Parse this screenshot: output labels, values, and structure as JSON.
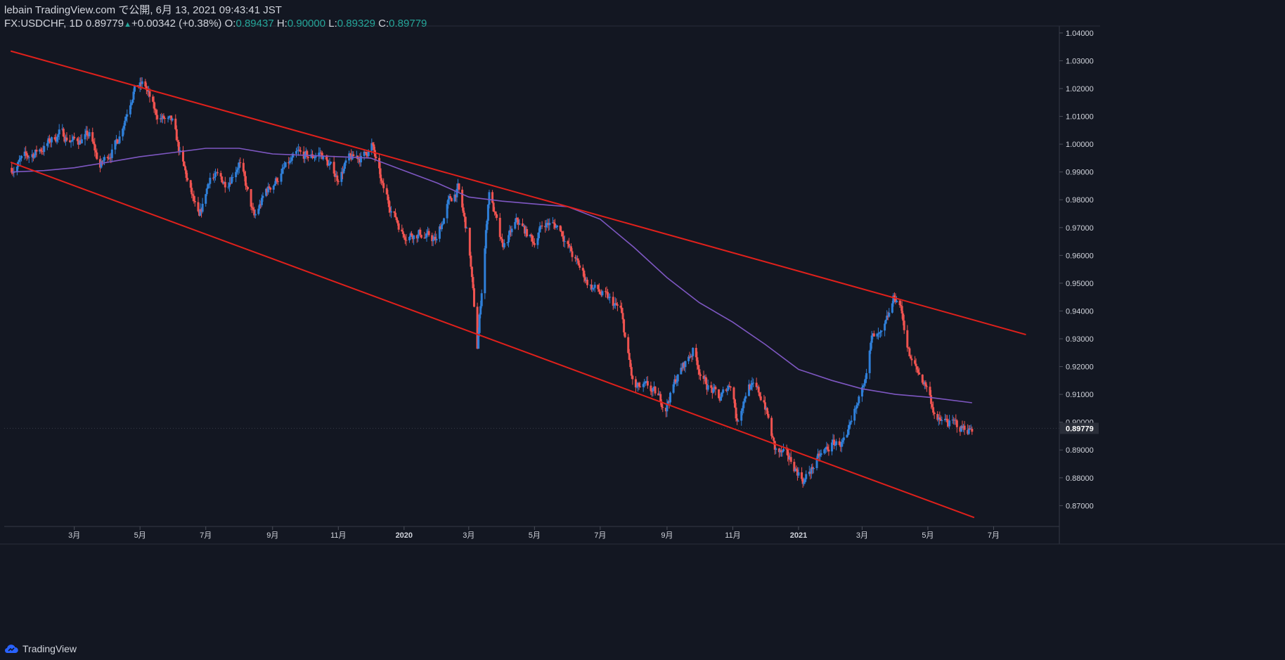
{
  "header": {
    "line1": "lebain TradingView.com で公開, 6月 13, 2021 09:43:41 JST",
    "symbol": "FX:USDCHF, 1D",
    "last": "0.89779",
    "change": "+0.00342 (+0.38%)",
    "o_label": "O:",
    "o_value": "0.89437",
    "h_label": "H:",
    "h_value": "0.90000",
    "l_label": "L:",
    "l_value": "0.89329",
    "c_label": "C:",
    "c_value": "0.89779"
  },
  "footer": {
    "brand": "TradingView"
  },
  "colors": {
    "background": "#131722",
    "up": "#2f7fd8",
    "down": "#ef5350",
    "ma": "#7e57c2",
    "trendline": "#e0201b",
    "axis_text": "#d1d4dc"
  },
  "chart_data": {
    "type": "candlestick",
    "symbol": "FX:USDCHF",
    "interval": "1D",
    "y_ticks": [
      "1.04000",
      "1.03000",
      "1.02000",
      "1.01000",
      "1.00000",
      "0.99000",
      "0.98000",
      "0.97000",
      "0.96000",
      "0.95000",
      "0.94000",
      "0.93000",
      "0.92000",
      "0.91000",
      "0.90000",
      "0.89000",
      "0.88000",
      "0.87000"
    ],
    "ylim": [
      0.8625,
      1.0425
    ],
    "x_ticks": [
      "3月",
      "5月",
      "7月",
      "9月",
      "11月",
      "2020",
      "3月",
      "5月",
      "7月",
      "9月",
      "11月",
      "2021",
      "3月",
      "5月",
      "7月"
    ],
    "x_tick_dates": [
      "2019-03-01",
      "2019-05-01",
      "2019-07-01",
      "2019-09-01",
      "2019-11-01",
      "2020-01-01",
      "2020-03-01",
      "2020-05-01",
      "2020-07-01",
      "2020-09-01",
      "2020-11-01",
      "2021-01-01",
      "2021-03-01",
      "2021-05-01",
      "2021-07-01"
    ],
    "last_price_label": "0.89779",
    "close_series": [
      [
        "2019-01-02",
        0.9915
      ],
      [
        "2019-01-15",
        0.995
      ],
      [
        "2019-02-01",
        0.999
      ],
      [
        "2019-02-15",
        1.004
      ],
      [
        "2019-03-01",
        1.001
      ],
      [
        "2019-03-15",
        1.003
      ],
      [
        "2019-03-25",
        0.992
      ],
      [
        "2019-04-10",
        1.001
      ],
      [
        "2019-04-25",
        1.02
      ],
      [
        "2019-05-05",
        1.0215
      ],
      [
        "2019-05-15",
        1.011
      ],
      [
        "2019-05-31",
        1.007
      ],
      [
        "2019-06-10",
        0.992
      ],
      [
        "2019-06-25",
        0.972
      ],
      [
        "2019-07-05",
        0.989
      ],
      [
        "2019-07-20",
        0.986
      ],
      [
        "2019-08-01",
        0.994
      ],
      [
        "2019-08-15",
        0.973
      ],
      [
        "2019-08-26",
        0.983
      ],
      [
        "2019-09-10",
        0.99
      ],
      [
        "2019-09-25",
        0.996
      ],
      [
        "2019-10-05",
        0.995
      ],
      [
        "2019-10-15",
        0.997
      ],
      [
        "2019-10-31",
        0.988
      ],
      [
        "2019-11-10",
        0.994
      ],
      [
        "2019-11-25",
        0.996
      ],
      [
        "2019-12-02",
        1.0
      ],
      [
        "2019-12-12",
        0.984
      ],
      [
        "2019-12-31",
        0.968
      ],
      [
        "2020-01-15",
        0.968
      ],
      [
        "2020-01-31",
        0.965
      ],
      [
        "2020-02-10",
        0.978
      ],
      [
        "2020-02-20",
        0.984
      ],
      [
        "2020-03-01",
        0.965
      ],
      [
        "2020-03-09",
        0.927
      ],
      [
        "2020-03-20",
        0.984
      ],
      [
        "2020-04-01",
        0.962
      ],
      [
        "2020-04-15",
        0.972
      ],
      [
        "2020-04-30",
        0.965
      ],
      [
        "2020-05-10",
        0.972
      ],
      [
        "2020-05-25",
        0.97
      ],
      [
        "2020-06-05",
        0.96
      ],
      [
        "2020-06-20",
        0.95
      ],
      [
        "2020-07-05",
        0.945
      ],
      [
        "2020-07-20",
        0.94
      ],
      [
        "2020-08-01",
        0.912
      ],
      [
        "2020-08-15",
        0.912
      ],
      [
        "2020-08-31",
        0.906
      ],
      [
        "2020-09-10",
        0.916
      ],
      [
        "2020-09-25",
        0.926
      ],
      [
        "2020-10-05",
        0.915
      ],
      [
        "2020-10-20",
        0.908
      ],
      [
        "2020-10-31",
        0.915
      ],
      [
        "2020-11-05",
        0.9
      ],
      [
        "2020-11-15",
        0.914
      ],
      [
        "2020-11-30",
        0.908
      ],
      [
        "2020-12-10",
        0.89
      ],
      [
        "2020-12-25",
        0.886
      ],
      [
        "2021-01-06",
        0.879
      ],
      [
        "2021-01-20",
        0.887
      ],
      [
        "2021-02-01",
        0.892
      ],
      [
        "2021-02-15",
        0.893
      ],
      [
        "2021-02-26",
        0.907
      ],
      [
        "2021-03-10",
        0.93
      ],
      [
        "2021-03-20",
        0.93
      ],
      [
        "2021-03-31",
        0.945
      ],
      [
        "2021-04-05",
        0.943
      ],
      [
        "2021-04-15",
        0.922
      ],
      [
        "2021-04-30",
        0.913
      ],
      [
        "2021-05-10",
        0.9
      ],
      [
        "2021-05-20",
        0.9
      ],
      [
        "2021-05-31",
        0.898
      ],
      [
        "2021-06-11",
        0.8978
      ]
    ],
    "moving_average": [
      [
        "2019-01-02",
        0.99
      ],
      [
        "2019-02-01",
        0.9905
      ],
      [
        "2019-03-01",
        0.9915
      ],
      [
        "2019-04-01",
        0.9935
      ],
      [
        "2019-05-01",
        0.9955
      ],
      [
        "2019-06-01",
        0.997
      ],
      [
        "2019-07-01",
        0.9985
      ],
      [
        "2019-08-01",
        0.9985
      ],
      [
        "2019-09-01",
        0.9965
      ],
      [
        "2019-10-01",
        0.996
      ],
      [
        "2019-11-01",
        0.9955
      ],
      [
        "2019-12-01",
        0.995
      ],
      [
        "2020-01-01",
        0.9905
      ],
      [
        "2020-02-01",
        0.986
      ],
      [
        "2020-03-01",
        0.981
      ],
      [
        "2020-04-01",
        0.9795
      ],
      [
        "2020-05-01",
        0.9785
      ],
      [
        "2020-06-01",
        0.9775
      ],
      [
        "2020-07-01",
        0.973
      ],
      [
        "2020-08-01",
        0.963
      ],
      [
        "2020-09-01",
        0.952
      ],
      [
        "2020-10-01",
        0.943
      ],
      [
        "2020-11-01",
        0.936
      ],
      [
        "2020-12-01",
        0.928
      ],
      [
        "2021-01-01",
        0.919
      ],
      [
        "2021-02-01",
        0.915
      ],
      [
        "2021-03-01",
        0.912
      ],
      [
        "2021-04-01",
        0.91
      ],
      [
        "2021-05-01",
        0.909
      ],
      [
        "2021-06-11",
        0.907
      ]
    ],
    "trendlines": [
      {
        "name": "upper",
        "points": [
          [
            "2019-01-01",
            1.0335
          ],
          [
            "2021-07-31",
            0.9315
          ]
        ]
      },
      {
        "name": "lower",
        "points": [
          [
            "2019-01-01",
            0.9935
          ],
          [
            "2021-06-13",
            0.8657
          ]
        ]
      }
    ],
    "grid": false,
    "legend": "none"
  }
}
